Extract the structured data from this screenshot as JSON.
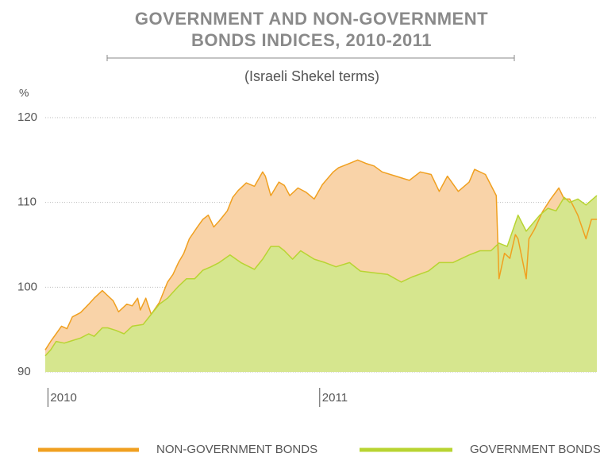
{
  "chart_data": {
    "type": "area",
    "title": "GOVERNMENT AND NON-GOVERNMENT BONDS INDICES, 2010-2011",
    "subtitle": "(Israeli Shekel terms)",
    "y_label": "%",
    "xlim": [
      2009.99,
      2012.02
    ],
    "xticks": [
      2010,
      2011
    ],
    "ylim": [
      90,
      120
    ],
    "yticks": [
      90,
      100,
      110,
      120
    ],
    "grid": true,
    "legend": "bottom",
    "series": [
      {
        "name": "NON-GOVERNMENT BONDS",
        "color": "#f0a020",
        "fill": "#f9d3a8",
        "x": [
          2009.99,
          2010.01,
          2010.03,
          2010.05,
          2010.07,
          2010.09,
          2010.12,
          2010.15,
          2010.17,
          2010.2,
          2010.22,
          2010.24,
          2010.26,
          2010.29,
          2010.31,
          2010.33,
          2010.34,
          2010.36,
          2010.38,
          2010.41,
          2010.44,
          2010.46,
          2010.48,
          2010.5,
          2010.52,
          2010.55,
          2010.57,
          2010.59,
          2010.61,
          2010.63,
          2010.66,
          2010.68,
          2010.7,
          2010.73,
          2010.76,
          2010.79,
          2010.8,
          2010.82,
          2010.85,
          2010.87,
          2010.89,
          2010.92,
          2010.95,
          2010.98,
          2011.01,
          2011.05,
          2011.07,
          2011.11,
          2011.14,
          2011.17,
          2011.2,
          2011.23,
          2011.28,
          2011.33,
          2011.37,
          2011.41,
          2011.44,
          2011.47,
          2011.51,
          2011.55,
          2011.57,
          2011.61,
          2011.65,
          2011.66,
          2011.68,
          2011.7,
          2011.72,
          2011.73,
          2011.76,
          2011.77,
          2011.79,
          2011.82,
          2011.85,
          2011.88,
          2011.9,
          2011.92,
          2011.95,
          2011.98,
          2012,
          2012.02
        ],
        "values": [
          92.6,
          93.6,
          94.5,
          95.4,
          95.1,
          96.5,
          97.0,
          98.0,
          98.7,
          99.6,
          99.0,
          98.4,
          97.1,
          98.0,
          97.8,
          98.7,
          97.3,
          98.7,
          96.8,
          98.2,
          100.6,
          101.5,
          102.9,
          104.0,
          105.7,
          107.1,
          108.0,
          108.5,
          107.1,
          107.8,
          109.0,
          110.6,
          111.4,
          112.3,
          111.9,
          113.6,
          113.1,
          110.8,
          112.4,
          112.0,
          110.8,
          111.7,
          111.2,
          110.4,
          112.1,
          113.6,
          114.1,
          114.6,
          115.0,
          114.6,
          114.3,
          113.6,
          113.1,
          112.6,
          113.6,
          113.3,
          111.3,
          113.1,
          111.3,
          112.4,
          113.9,
          113.3,
          110.8,
          101.0,
          104.0,
          103.4,
          106.2,
          105.7,
          101.0,
          105.7,
          106.8,
          108.9,
          110.4,
          111.7,
          110.4,
          110.4,
          108.5,
          105.7,
          108.0,
          108.0
        ]
      },
      {
        "name": "GOVERNMENT BONDS",
        "color": "#b8d432",
        "fill": "#d6e68e",
        "x": [
          2009.99,
          2010.01,
          2010.03,
          2010.06,
          2010.09,
          2010.12,
          2010.15,
          2010.17,
          2010.2,
          2010.22,
          2010.25,
          2010.28,
          2010.31,
          2010.35,
          2010.38,
          2010.41,
          2010.44,
          2010.48,
          2010.51,
          2010.54,
          2010.57,
          2010.6,
          2010.63,
          2010.67,
          2010.71,
          2010.76,
          2010.79,
          2010.82,
          2010.85,
          2010.87,
          2010.9,
          2010.93,
          2010.98,
          2011.02,
          2011.06,
          2011.11,
          2011.15,
          2011.2,
          2011.25,
          2011.3,
          2011.34,
          2011.4,
          2011.44,
          2011.49,
          2011.55,
          2011.59,
          2011.63,
          2011.66,
          2011.69,
          2011.73,
          2011.76,
          2011.81,
          2011.84,
          2011.87,
          2011.9,
          2011.92,
          2011.95,
          2011.98,
          2012.02
        ],
        "values": [
          91.9,
          92.6,
          93.6,
          93.4,
          93.7,
          94.0,
          94.5,
          94.2,
          95.2,
          95.2,
          94.9,
          94.5,
          95.4,
          95.6,
          96.8,
          98.0,
          98.7,
          100.1,
          101.0,
          101.0,
          102.0,
          102.4,
          102.9,
          103.8,
          102.9,
          102.1,
          103.3,
          104.8,
          104.8,
          104.3,
          103.3,
          104.3,
          103.3,
          102.9,
          102.4,
          102.9,
          101.9,
          101.7,
          101.5,
          100.6,
          101.2,
          101.9,
          102.9,
          102.9,
          103.8,
          104.3,
          104.3,
          105.2,
          104.8,
          108.5,
          106.6,
          108.5,
          109.3,
          109.0,
          110.6,
          110.0,
          110.4,
          109.7,
          110.8
        ]
      }
    ]
  }
}
